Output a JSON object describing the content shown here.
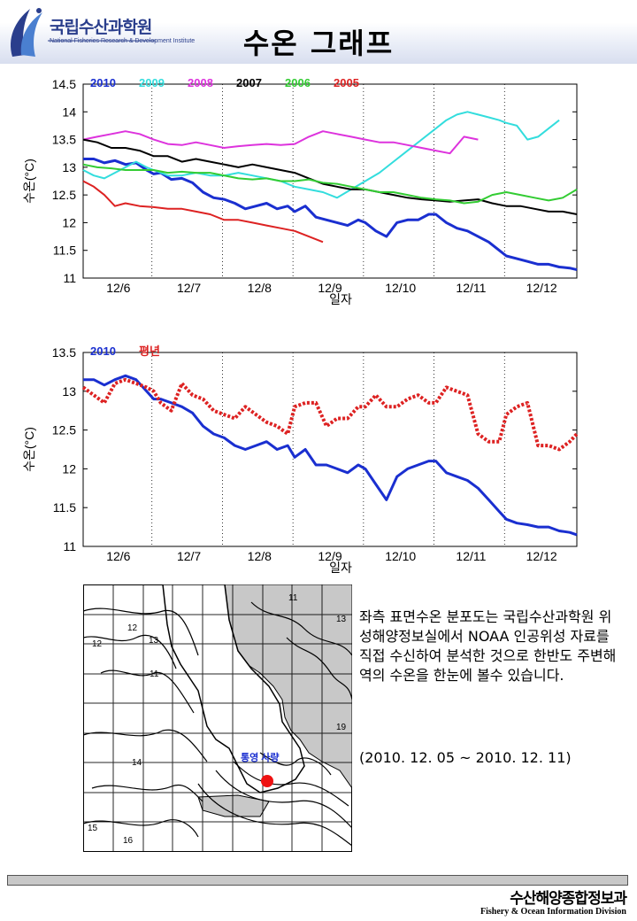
{
  "header": {
    "org_name": "국립수산과학원",
    "org_sub": "National Fisheries Research & Development Institute",
    "title": "수온 그래프"
  },
  "chart_data": [
    {
      "type": "line",
      "ylabel": "수온(°C)",
      "xlabel": "일자",
      "ylim": [
        11,
        14.5
      ],
      "yticks": [
        11,
        11.5,
        12,
        12.5,
        13,
        13.5,
        14,
        14.5
      ],
      "xlim": [
        0,
        7
      ],
      "categories": [
        "12/6",
        "12/7",
        "12/8",
        "12/9",
        "12/10",
        "12/11",
        "12/12"
      ],
      "grid": "vertical dotted day separators",
      "legend": "top-left",
      "series": [
        {
          "name": "2010",
          "color": "#1a2fd0",
          "width": 3,
          "x": [
            0,
            0.15,
            0.3,
            0.45,
            0.6,
            0.75,
            0.9,
            1.0,
            1.1,
            1.25,
            1.4,
            1.55,
            1.7,
            1.85,
            2.0,
            2.15,
            2.3,
            2.45,
            2.6,
            2.75,
            2.9,
            3.0,
            3.15,
            3.3,
            3.45,
            3.6,
            3.75,
            3.9,
            4.0,
            4.15,
            4.3,
            4.45,
            4.6,
            4.75,
            4.9,
            5.0,
            5.15,
            5.3,
            5.45,
            5.6,
            5.75,
            5.9,
            6.0,
            6.15,
            6.3,
            6.45,
            6.6,
            6.75,
            6.9,
            7.0
          ],
          "y": [
            13.15,
            13.15,
            13.08,
            13.12,
            13.05,
            13.08,
            12.95,
            12.88,
            12.9,
            12.78,
            12.8,
            12.72,
            12.55,
            12.45,
            12.42,
            12.35,
            12.25,
            12.3,
            12.35,
            12.25,
            12.3,
            12.2,
            12.3,
            12.1,
            12.05,
            12.0,
            11.95,
            12.05,
            12.0,
            11.85,
            11.75,
            12.0,
            12.05,
            12.05,
            12.15,
            12.15,
            12.0,
            11.9,
            11.85,
            11.75,
            11.65,
            11.5,
            11.4,
            11.35,
            11.3,
            11.25,
            11.25,
            11.2,
            11.18,
            11.15
          ]
        },
        {
          "name": "2009",
          "color": "#33dddd",
          "width": 2,
          "x": [
            0,
            0.15,
            0.3,
            0.45,
            0.6,
            0.75,
            0.9,
            1.0,
            1.2,
            1.4,
            1.6,
            1.8,
            2.0,
            2.2,
            2.4,
            2.6,
            2.8,
            3.0,
            3.2,
            3.4,
            3.6,
            3.8,
            4.0,
            4.2,
            4.4,
            4.6,
            4.8,
            5.0,
            5.15,
            5.3,
            5.45,
            5.6,
            5.75,
            5.9,
            6.0,
            6.15,
            6.3,
            6.45,
            6.6,
            6.75
          ],
          "y": [
            12.95,
            12.85,
            12.8,
            12.9,
            13.0,
            13.1,
            13.0,
            12.95,
            12.85,
            12.85,
            12.9,
            12.85,
            12.85,
            12.9,
            12.85,
            12.8,
            12.75,
            12.65,
            12.6,
            12.55,
            12.45,
            12.6,
            12.75,
            12.9,
            13.1,
            13.3,
            13.5,
            13.7,
            13.85,
            13.95,
            14.0,
            13.95,
            13.9,
            13.85,
            13.8,
            13.75,
            13.5,
            13.55,
            13.7,
            13.85
          ]
        },
        {
          "name": "2008",
          "color": "#dd33dd",
          "width": 2,
          "x": [
            0,
            0.2,
            0.4,
            0.6,
            0.8,
            1.0,
            1.2,
            1.4,
            1.6,
            1.8,
            2.0,
            2.2,
            2.4,
            2.6,
            2.8,
            3.0,
            3.2,
            3.4,
            3.6,
            3.8,
            4.0,
            4.2,
            4.4,
            4.6,
            4.8,
            5.0,
            5.2,
            5.4,
            5.6
          ],
          "y": [
            13.5,
            13.55,
            13.6,
            13.65,
            13.6,
            13.5,
            13.42,
            13.4,
            13.45,
            13.4,
            13.35,
            13.38,
            13.4,
            13.42,
            13.4,
            13.42,
            13.55,
            13.65,
            13.6,
            13.55,
            13.5,
            13.45,
            13.45,
            13.4,
            13.35,
            13.3,
            13.25,
            13.55,
            13.5
          ]
        },
        {
          "name": "2007",
          "color": "#000000",
          "width": 2,
          "x": [
            0,
            0.2,
            0.4,
            0.6,
            0.8,
            1.0,
            1.2,
            1.4,
            1.6,
            1.8,
            2.0,
            2.2,
            2.4,
            2.6,
            2.8,
            3.0,
            3.2,
            3.4,
            3.6,
            3.8,
            4.0,
            4.2,
            4.4,
            4.6,
            4.8,
            5.0,
            5.2,
            5.4,
            5.6,
            5.8,
            6.0,
            6.2,
            6.4,
            6.6,
            6.8,
            7.0
          ],
          "y": [
            13.5,
            13.45,
            13.35,
            13.35,
            13.3,
            13.2,
            13.2,
            13.1,
            13.15,
            13.1,
            13.05,
            13.0,
            13.05,
            13.0,
            12.95,
            12.9,
            12.8,
            12.7,
            12.65,
            12.6,
            12.6,
            12.55,
            12.5,
            12.45,
            12.42,
            12.4,
            12.38,
            12.4,
            12.42,
            12.35,
            12.3,
            12.3,
            12.25,
            12.2,
            12.2,
            12.15
          ]
        },
        {
          "name": "2006",
          "color": "#33cc33",
          "width": 2,
          "x": [
            0,
            0.2,
            0.4,
            0.6,
            0.8,
            1.0,
            1.2,
            1.4,
            1.6,
            1.8,
            2.0,
            2.2,
            2.4,
            2.6,
            2.8,
            3.0,
            3.2,
            3.4,
            3.6,
            3.8,
            4.0,
            4.2,
            4.4,
            4.6,
            4.8,
            5.0,
            5.2,
            5.4,
            5.6,
            5.8,
            6.0,
            6.2,
            6.4,
            6.6,
            6.8,
            7.0
          ],
          "y": [
            13.05,
            13.0,
            12.98,
            12.95,
            12.95,
            12.95,
            12.9,
            12.92,
            12.9,
            12.9,
            12.85,
            12.8,
            12.78,
            12.8,
            12.75,
            12.75,
            12.78,
            12.72,
            12.7,
            12.65,
            12.6,
            12.55,
            12.55,
            12.5,
            12.45,
            12.42,
            12.4,
            12.35,
            12.38,
            12.5,
            12.55,
            12.5,
            12.45,
            12.4,
            12.45,
            12.6
          ]
        },
        {
          "name": "2005",
          "color": "#dd2222",
          "width": 2,
          "x": [
            0,
            0.15,
            0.3,
            0.45,
            0.6,
            0.8,
            1.0,
            1.2,
            1.4,
            1.6,
            1.8,
            2.0,
            2.2,
            2.4,
            2.6,
            2.8,
            3.0,
            3.2,
            3.4
          ],
          "y": [
            12.75,
            12.65,
            12.5,
            12.3,
            12.35,
            12.3,
            12.28,
            12.25,
            12.25,
            12.2,
            12.15,
            12.05,
            12.05,
            12.0,
            11.95,
            11.9,
            11.85,
            11.75,
            11.65
          ]
        }
      ]
    },
    {
      "type": "line",
      "ylabel": "수온(°C)",
      "xlabel": "일자",
      "ylim": [
        11,
        13.5
      ],
      "yticks": [
        11,
        11.5,
        12,
        12.5,
        13,
        13.5
      ],
      "xlim": [
        0,
        7
      ],
      "categories": [
        "12/6",
        "12/7",
        "12/8",
        "12/9",
        "12/10",
        "12/11",
        "12/12"
      ],
      "grid": "vertical dotted day separators",
      "legend": "top-left",
      "series": [
        {
          "name": "2010",
          "color": "#1a2fd0",
          "width": 3,
          "x": [
            0,
            0.15,
            0.3,
            0.45,
            0.6,
            0.75,
            0.9,
            1.0,
            1.1,
            1.25,
            1.4,
            1.55,
            1.7,
            1.85,
            2.0,
            2.15,
            2.3,
            2.45,
            2.6,
            2.75,
            2.9,
            3.0,
            3.15,
            3.3,
            3.45,
            3.6,
            3.75,
            3.9,
            4.0,
            4.15,
            4.3,
            4.45,
            4.6,
            4.75,
            4.9,
            5.0,
            5.15,
            5.3,
            5.45,
            5.6,
            5.75,
            5.9,
            6.0,
            6.15,
            6.3,
            6.45,
            6.6,
            6.75,
            6.9,
            7.0
          ],
          "y": [
            13.15,
            13.15,
            13.08,
            13.15,
            13.2,
            13.15,
            13.0,
            12.9,
            12.9,
            12.85,
            12.8,
            12.72,
            12.55,
            12.45,
            12.4,
            12.3,
            12.25,
            12.3,
            12.35,
            12.25,
            12.3,
            12.15,
            12.25,
            12.05,
            12.05,
            12.0,
            11.95,
            12.05,
            12.0,
            11.8,
            11.6,
            11.9,
            12.0,
            12.05,
            12.1,
            12.1,
            11.95,
            11.9,
            11.85,
            11.75,
            11.6,
            11.45,
            11.35,
            11.3,
            11.28,
            11.25,
            11.25,
            11.2,
            11.18,
            11.15
          ]
        },
        {
          "name": "평년",
          "color": "#dd2222",
          "width": 2,
          "style": "dotted",
          "x": [
            0,
            0.15,
            0.3,
            0.45,
            0.6,
            0.75,
            0.9,
            1.0,
            1.1,
            1.25,
            1.4,
            1.55,
            1.7,
            1.85,
            2.0,
            2.15,
            2.3,
            2.45,
            2.6,
            2.75,
            2.9,
            3.0,
            3.15,
            3.3,
            3.45,
            3.6,
            3.75,
            3.9,
            4.0,
            4.15,
            4.3,
            4.45,
            4.6,
            4.75,
            4.9,
            5.0,
            5.15,
            5.3,
            5.45,
            5.6,
            5.75,
            5.9,
            6.0,
            6.15,
            6.3,
            6.45,
            6.6,
            6.75,
            6.9,
            7.0
          ],
          "y": [
            13.05,
            12.95,
            12.85,
            13.1,
            13.15,
            13.1,
            13.05,
            13.0,
            12.85,
            12.75,
            13.1,
            12.95,
            12.9,
            12.75,
            12.7,
            12.65,
            12.8,
            12.7,
            12.6,
            12.55,
            12.45,
            12.8,
            12.85,
            12.85,
            12.55,
            12.65,
            12.65,
            12.8,
            12.8,
            12.95,
            12.8,
            12.8,
            12.9,
            12.95,
            12.85,
            12.85,
            13.05,
            13.0,
            12.95,
            12.45,
            12.35,
            12.35,
            12.7,
            12.8,
            12.85,
            12.3,
            12.3,
            12.25,
            12.35,
            12.45
          ]
        }
      ]
    }
  ],
  "map": {
    "label": "통영 사량",
    "contour_labels": [
      "11",
      "12",
      "13",
      "11",
      "12",
      "14",
      "15",
      "16",
      "19",
      "13"
    ]
  },
  "description": "좌측 표면수온 분포도는 국립수산과학원 위성해양정보실에서 NOAA 인공위성 자료를 직접 수신하여 분석한 것으로 한반도 주변해역의 수온을 한눈에 볼수 있습니다.",
  "period": "(2010. 12. 05 ~ 2010. 12. 11)",
  "footer": {
    "ko": "수산해양종합정보과",
    "en": "Fishery & Ocean Information Division"
  }
}
